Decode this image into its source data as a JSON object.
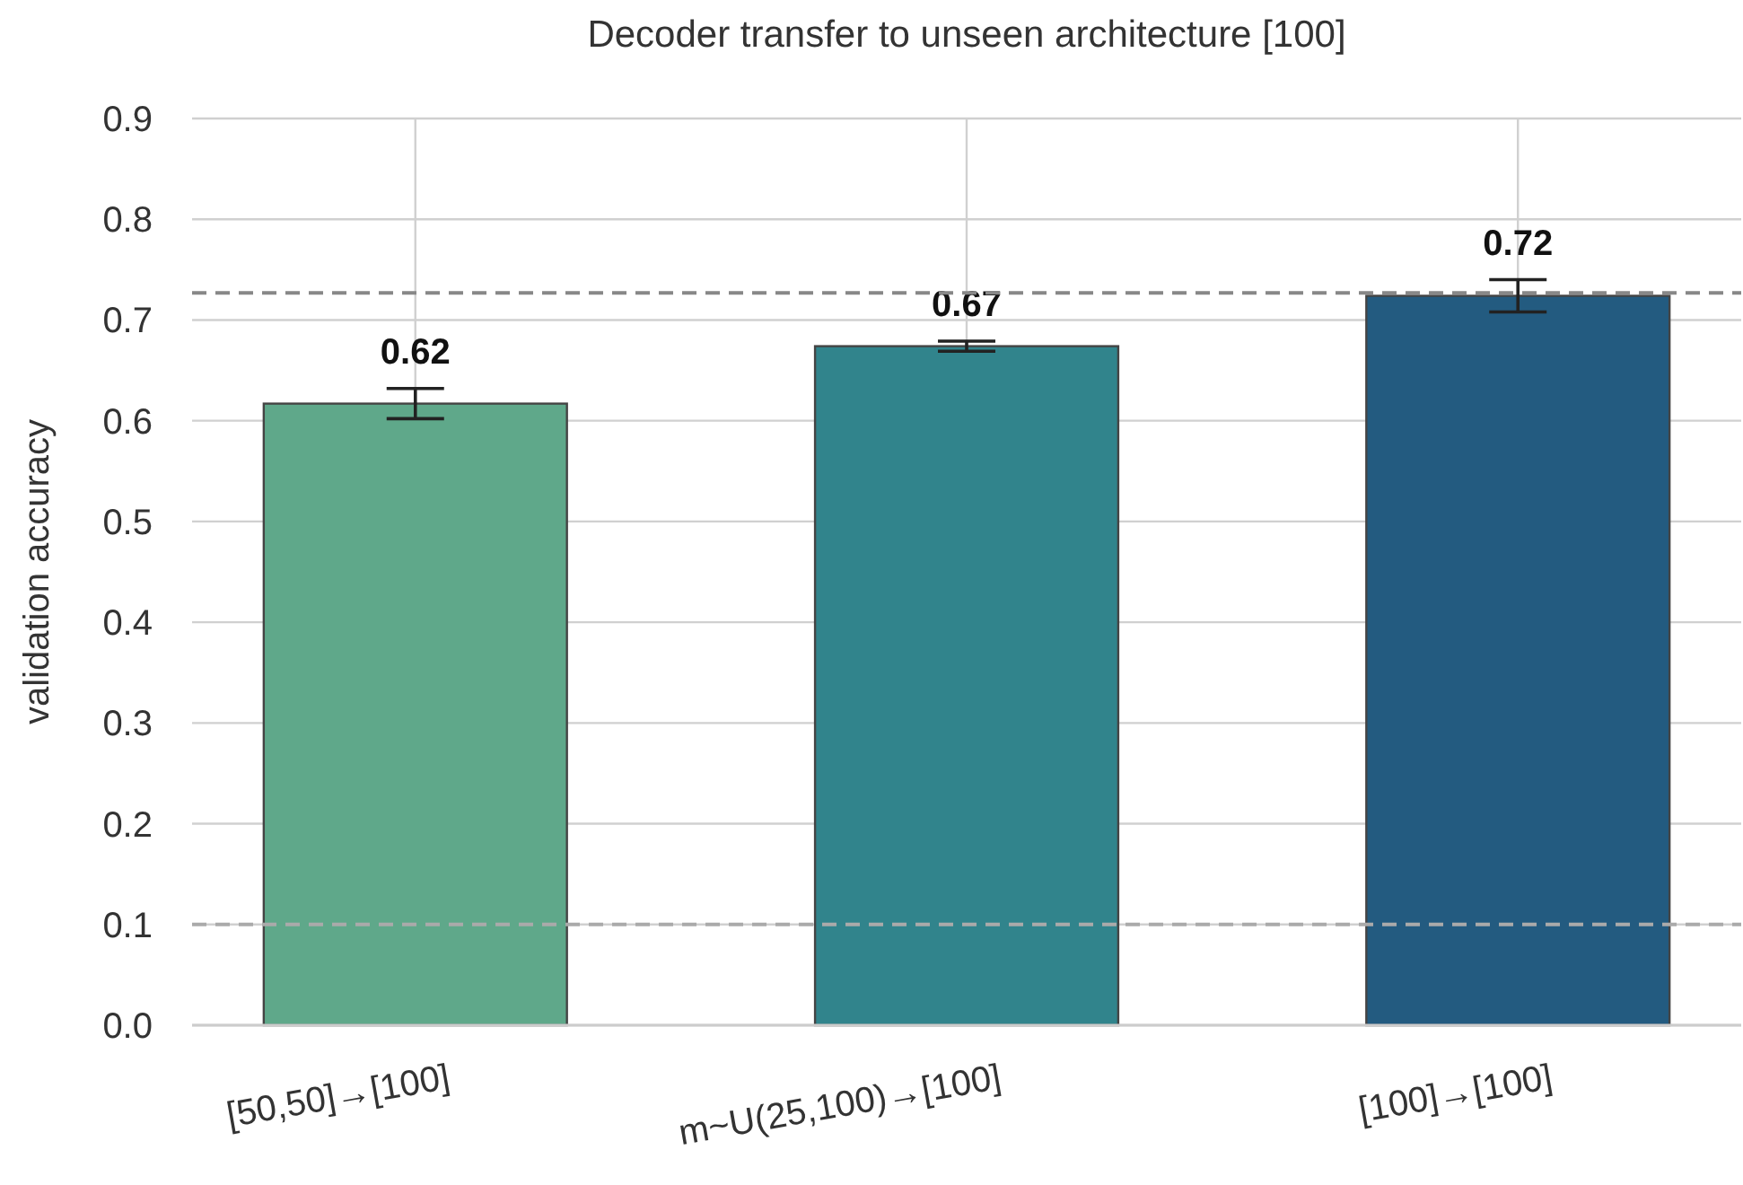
{
  "chart_data": {
    "type": "bar",
    "title": "Decoder transfer to unseen architecture [100]",
    "ylabel": "validation accuracy",
    "categories": [
      "[50,50]→[100]",
      "m~U(25,100)→[100]",
      "[100]→[100]"
    ],
    "values": [
      0.617,
      0.674,
      0.724
    ],
    "errors": [
      0.015,
      0.005,
      0.016
    ],
    "colors": [
      "#5fa88a",
      "#31848c",
      "#235b80"
    ],
    "value_labels": [
      "0.62",
      "0.67",
      "0.72"
    ],
    "ylim": [
      0,
      0.9
    ],
    "yticks": [
      {
        "value": 0,
        "label": "0.0"
      },
      0.1,
      0.2,
      0.3,
      0.4,
      0.5,
      0.6,
      0.7,
      0.8,
      0.9
    ],
    "ref_lines": [
      {
        "axis": "y",
        "value": 0.727,
        "color": "#888888",
        "line_style": "dashed"
      },
      {
        "axis": "y",
        "value": 0.1,
        "color": "#aaaaaa",
        "line_style": "dashed"
      }
    ],
    "grid": true
  }
}
